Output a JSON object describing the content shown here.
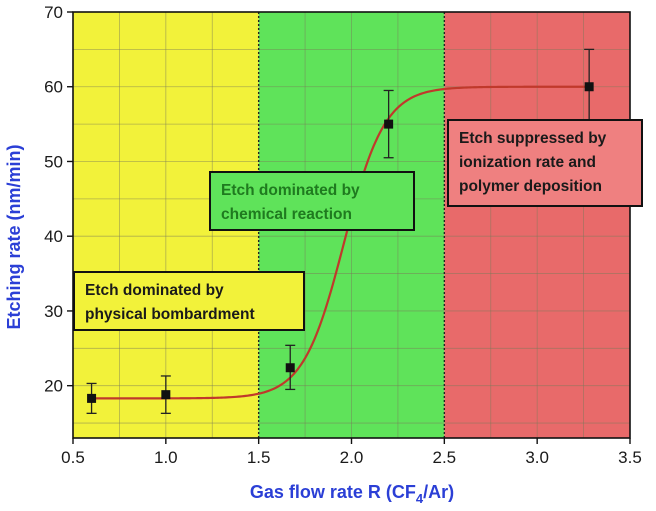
{
  "chart_data": {
    "type": "scatter",
    "xlabel": "Gas flow rate R (CF",
    "xlabel_sub": "4",
    "xlabel_tail": "/Ar)",
    "ylabel": "Etching rate (nm/min)",
    "xlim": [
      0.5,
      3.5
    ],
    "ylim": [
      13,
      70
    ],
    "xticks": [
      "0.5",
      "1.0",
      "1.5",
      "2.0",
      "2.5",
      "3.0",
      "3.5"
    ],
    "yticks": [
      "20",
      "30",
      "40",
      "50",
      "60",
      "70"
    ],
    "grid": true,
    "series": [
      {
        "points": [
          {
            "x": 0.6,
            "y": 18.3,
            "err_low": 16.3,
            "err_high": 20.3
          },
          {
            "x": 1.0,
            "y": 18.8,
            "err_low": 16.3,
            "err_high": 21.3
          },
          {
            "x": 1.67,
            "y": 22.4,
            "err_low": 19.5,
            "err_high": 25.4
          },
          {
            "x": 2.2,
            "y": 55.0,
            "err_low": 50.5,
            "err_high": 59.5
          },
          {
            "x": 3.28,
            "y": 60.0,
            "err_low": 55.0,
            "err_high": 65.0
          }
        ],
        "fit": "sigmoid",
        "fit_params": {
          "low": 18.3,
          "high": 60.0,
          "center": 1.96,
          "width": 0.11
        },
        "marker_color": "#111111",
        "fit_color": "#c0392b"
      }
    ],
    "regions": [
      {
        "x_from": 0.5,
        "x_to": 1.5,
        "color": "#f2f23a"
      },
      {
        "x_from": 1.5,
        "x_to": 2.5,
        "color": "#5fe35a"
      },
      {
        "x_from": 2.5,
        "x_to": 3.5,
        "color": "#e86a6a"
      }
    ],
    "annotations": [
      {
        "lines": [
          "Etch dominated by",
          "physical bombardment"
        ],
        "fill": "#f2f23a",
        "text_style": "dark"
      },
      {
        "lines": [
          "Etch dominated by",
          "chemical reaction"
        ],
        "fill": "#5fe35a",
        "text_style": "green"
      },
      {
        "lines": [
          "Etch suppressed by",
          "ionization rate and",
          "polymer deposition"
        ],
        "fill": "#ef8080",
        "text_style": "dark"
      }
    ]
  }
}
